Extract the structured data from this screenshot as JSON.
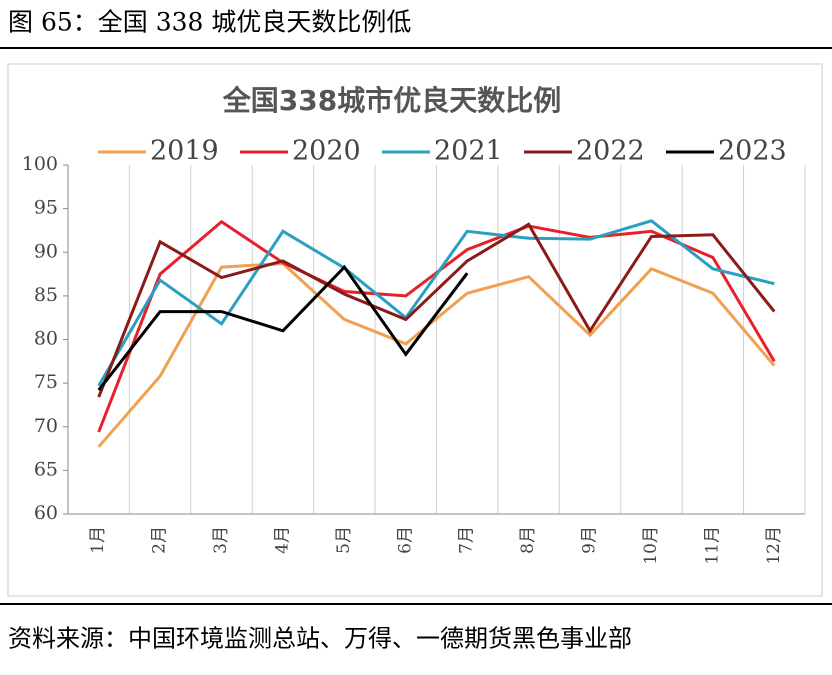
{
  "header": {
    "title": "图 65：全国 338 城优良天数比例低"
  },
  "chart_data": {
    "type": "line",
    "title": "全国338城市优良天数比例",
    "categories": [
      "1月",
      "2月",
      "3月",
      "4月",
      "5月",
      "6月",
      "7月",
      "8月",
      "9月",
      "10月",
      "11月",
      "12月"
    ],
    "series": [
      {
        "name": "2019",
        "color": "#f0a050",
        "values": [
          67.7,
          75.8,
          88.3,
          88.7,
          82.3,
          79.5,
          85.3,
          87.2,
          80.5,
          88.1,
          85.3,
          77.0
        ]
      },
      {
        "name": "2020",
        "color": "#e8202a",
        "values": [
          69.4,
          87.5,
          93.5,
          88.8,
          85.5,
          85.0,
          90.3,
          93.0,
          91.7,
          92.4,
          89.4,
          77.5
        ]
      },
      {
        "name": "2021",
        "color": "#2aa0c0",
        "values": [
          74.7,
          86.8,
          81.8,
          92.4,
          88.2,
          82.5,
          92.4,
          91.6,
          91.5,
          93.6,
          88.1,
          86.4
        ]
      },
      {
        "name": "2022",
        "color": "#8b1a1a",
        "values": [
          73.4,
          91.2,
          87.1,
          89.0,
          85.2,
          82.3,
          89.0,
          93.2,
          81.0,
          91.8,
          92.0,
          83.2
        ]
      },
      {
        "name": "2023",
        "color": "#000000",
        "values": [
          74.2,
          83.2,
          83.2,
          81.0,
          88.3,
          78.3,
          87.6,
          null,
          null,
          null,
          null,
          null
        ]
      }
    ],
    "ylim": [
      60,
      100
    ],
    "yticks": [
      60,
      65,
      70,
      75,
      80,
      85,
      90,
      95,
      100
    ],
    "legend": "top"
  },
  "footer": {
    "source": "资料来源：中国环境监测总站、万得、一德期货黑色事业部"
  }
}
